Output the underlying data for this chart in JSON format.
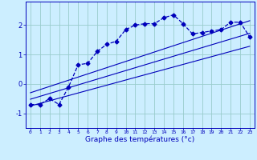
{
  "xlabel": "Graphe des températures (°c)",
  "xlim": [
    -0.5,
    23.5
  ],
  "ylim": [
    -1.5,
    2.8
  ],
  "yticks": [
    -1,
    0,
    1,
    2
  ],
  "xticks": [
    0,
    1,
    2,
    3,
    4,
    5,
    6,
    7,
    8,
    9,
    10,
    11,
    12,
    13,
    14,
    15,
    16,
    17,
    18,
    19,
    20,
    21,
    22,
    23
  ],
  "main_color": "#0000bb",
  "bg_color": "#cceeff",
  "grid_color": "#99cccc",
  "line_data_x": [
    0,
    1,
    2,
    3,
    4,
    5,
    6,
    7,
    8,
    9,
    10,
    11,
    12,
    13,
    14,
    15,
    16,
    17,
    18,
    19,
    20,
    21,
    22,
    23
  ],
  "line_data_y": [
    -0.7,
    -0.7,
    -0.5,
    -0.7,
    -0.1,
    0.65,
    0.7,
    1.1,
    1.35,
    1.45,
    1.85,
    2.0,
    2.05,
    2.05,
    2.25,
    2.35,
    2.05,
    1.7,
    1.75,
    1.8,
    1.85,
    2.1,
    2.1,
    1.6
  ],
  "reg_line1_x": [
    0,
    23
  ],
  "reg_line1_y": [
    -0.75,
    1.28
  ],
  "reg_line2_x": [
    0,
    23
  ],
  "reg_line2_y": [
    -0.52,
    1.72
  ],
  "reg_line3_x": [
    0,
    23
  ],
  "reg_line3_y": [
    -0.3,
    2.15
  ]
}
